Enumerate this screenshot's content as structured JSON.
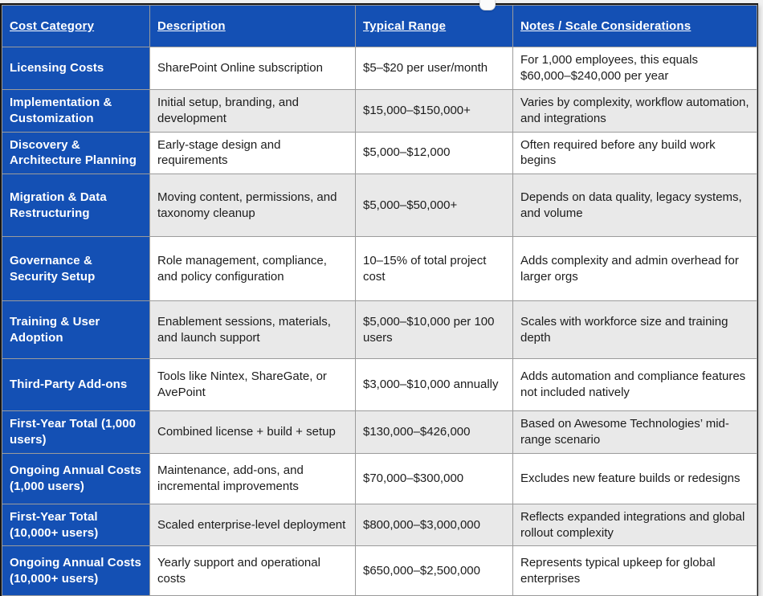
{
  "theme": {
    "accent": "#1450b4",
    "alt_row": "#e9e9e9",
    "grid_line": "#9b9b9b",
    "outer_line": "#141414",
    "body_text": "#1c1c1c",
    "page_bg": "#f1f1f1"
  },
  "table": {
    "columns": [
      "Cost Category",
      "Description",
      "Typical Range",
      "Notes / Scale Considerations"
    ],
    "rows": [
      {
        "category": "Licensing Costs",
        "description": "SharePoint Online subscription",
        "range": "$5–$20 per user/month",
        "notes": "For 1,000 employees, this equals $60,000–$240,000 per year"
      },
      {
        "category": "Implementation & Customization",
        "description": "Initial setup, branding, and development",
        "range": "$15,000–$150,000+",
        "notes": "Varies by complexity, workflow automation, and integrations"
      },
      {
        "category": "Discovery & Architecture Planning",
        "description": "Early-stage design and requirements",
        "range": "$5,000–$12,000",
        "notes": "Often required before any build work begins"
      },
      {
        "category": "Migration & Data Restructuring",
        "description": "Moving content, permissions, and taxonomy cleanup",
        "range": "$5,000–$50,000+",
        "notes": "Depends on data quality, legacy systems, and volume"
      },
      {
        "category": "Governance & Security Setup",
        "description": "Role management, compliance, and policy configuration",
        "range": "10–15% of total project cost",
        "notes": "Adds complexity and admin overhead for larger orgs"
      },
      {
        "category": "Training & User Adoption",
        "description": "Enablement sessions, materials, and launch support",
        "range": "$5,000–$10,000 per 100 users",
        "notes": "Scales with workforce size and training depth"
      },
      {
        "category": "Third-Party Add-ons",
        "description": "Tools like Nintex, ShareGate, or AvePoint",
        "range": "$3,000–$10,000 annually",
        "notes": "Adds automation and compliance features not included natively"
      },
      {
        "category": "First-Year Total (1,000 users)",
        "description": "Combined license + build + setup",
        "range": "$130,000–$426,000",
        "notes": "Based on Awesome Technologies’ mid-range scenario"
      },
      {
        "category": "Ongoing Annual Costs (1,000 users)",
        "description": "Maintenance, add-ons, and incremental improvements",
        "range": "$70,000–$300,000",
        "notes": "Excludes new feature builds or redesigns"
      },
      {
        "category": "First-Year Total (10,000+ users)",
        "description": "Scaled enterprise-level deployment",
        "range": "$800,000–$3,000,000",
        "notes": "Reflects expanded integrations and global rollout complexity"
      },
      {
        "category": "Ongoing Annual Costs (10,000+ users)",
        "description": "Yearly support and operational costs",
        "range": "$650,000–$2,500,000",
        "notes": "Represents typical upkeep for global enterprises"
      }
    ]
  }
}
